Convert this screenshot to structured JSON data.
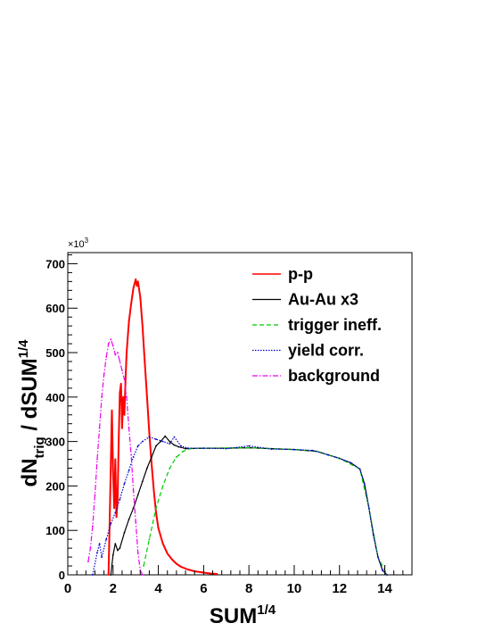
{
  "chart_data": {
    "type": "line",
    "xlabel": "SUM",
    "xlabel_sup": "1/4",
    "ylabel": "dN",
    "ylabel_sub": "trig",
    "ylabel_rest": " / dSUM",
    "ylabel_sup": "1/4",
    "y_multiplier": "×10",
    "y_multiplier_sup": "3",
    "xlim": [
      0,
      15.2
    ],
    "ylim": [
      0,
      725
    ],
    "x_ticks": [
      0,
      2,
      4,
      6,
      8,
      10,
      12,
      14
    ],
    "x_tick_labels": [
      "0",
      "2",
      "4",
      "6",
      "8",
      "10",
      "12",
      "14"
    ],
    "y_ticks": [
      0,
      100,
      200,
      300,
      400,
      500,
      600,
      700
    ],
    "y_tick_labels": [
      "0",
      "100",
      "200",
      "300",
      "400",
      "500",
      "600",
      "700"
    ],
    "legend_position": "top-right",
    "grid": false,
    "series": [
      {
        "name": "p-p",
        "color": "#ff0000",
        "style": "solid",
        "points": [
          [
            1.8,
            0
          ],
          [
            1.85,
            120
          ],
          [
            1.9,
            250
          ],
          [
            1.95,
            370
          ],
          [
            2.0,
            230
          ],
          [
            2.05,
            150
          ],
          [
            2.1,
            260
          ],
          [
            2.15,
            130
          ],
          [
            2.2,
            170
          ],
          [
            2.25,
            300
          ],
          [
            2.3,
            410
          ],
          [
            2.35,
            430
          ],
          [
            2.4,
            330
          ],
          [
            2.45,
            400
          ],
          [
            2.5,
            360
          ],
          [
            2.55,
            440
          ],
          [
            2.6,
            500
          ],
          [
            2.7,
            570
          ],
          [
            2.8,
            610
          ],
          [
            2.9,
            645
          ],
          [
            3.0,
            665
          ],
          [
            3.05,
            650
          ],
          [
            3.1,
            660
          ],
          [
            3.2,
            625
          ],
          [
            3.3,
            560
          ],
          [
            3.4,
            480
          ],
          [
            3.5,
            400
          ],
          [
            3.6,
            320
          ],
          [
            3.7,
            250
          ],
          [
            3.8,
            190
          ],
          [
            3.9,
            140
          ],
          [
            4.0,
            105
          ],
          [
            4.2,
            70
          ],
          [
            4.4,
            48
          ],
          [
            4.6,
            35
          ],
          [
            4.8,
            25
          ],
          [
            5.0,
            18
          ],
          [
            5.3,
            12
          ],
          [
            5.6,
            8
          ],
          [
            6.0,
            5
          ],
          [
            6.3,
            3
          ],
          [
            6.6,
            2
          ]
        ]
      },
      {
        "name": "Au-Au x3",
        "color": "#000000",
        "style": "solid",
        "points": [
          [
            1.9,
            0
          ],
          [
            2.0,
            45
          ],
          [
            2.1,
            70
          ],
          [
            2.2,
            55
          ],
          [
            2.3,
            60
          ],
          [
            2.5,
            95
          ],
          [
            2.7,
            125
          ],
          [
            2.9,
            150
          ],
          [
            3.1,
            180
          ],
          [
            3.3,
            210
          ],
          [
            3.5,
            240
          ],
          [
            3.7,
            265
          ],
          [
            3.9,
            290
          ],
          [
            4.1,
            300
          ],
          [
            4.3,
            312
          ],
          [
            4.5,
            300
          ],
          [
            4.7,
            292
          ],
          [
            4.9,
            288
          ],
          [
            5.2,
            284
          ],
          [
            6.0,
            285
          ],
          [
            7.0,
            285
          ],
          [
            8.0,
            286
          ],
          [
            9.0,
            284
          ],
          [
            10.0,
            282
          ],
          [
            11.0,
            278
          ],
          [
            11.5,
            270
          ],
          [
            12.0,
            262
          ],
          [
            12.5,
            252
          ],
          [
            12.9,
            238
          ],
          [
            13.1,
            205
          ],
          [
            13.3,
            150
          ],
          [
            13.5,
            90
          ],
          [
            13.7,
            40
          ],
          [
            13.9,
            10
          ],
          [
            14.1,
            0
          ]
        ]
      },
      {
        "name": "trigger ineff.",
        "color": "#00cc00",
        "style": "dashed",
        "points": [
          [
            3.35,
            20
          ],
          [
            3.6,
            80
          ],
          [
            3.9,
            150
          ],
          [
            4.2,
            200
          ],
          [
            4.5,
            240
          ],
          [
            4.8,
            265
          ],
          [
            5.1,
            278
          ],
          [
            5.4,
            284
          ],
          [
            6.0,
            285
          ],
          [
            8.0,
            286
          ],
          [
            10.0,
            282
          ],
          [
            11.0,
            278
          ],
          [
            12.0,
            262
          ],
          [
            12.9,
            238
          ],
          [
            13.3,
            150
          ],
          [
            13.7,
            40
          ],
          [
            14.1,
            0
          ]
        ]
      },
      {
        "name": "yield corr.",
        "color": "#0000cc",
        "style": "dotted",
        "points": [
          [
            1.1,
            0
          ],
          [
            1.3,
            50
          ],
          [
            1.4,
            70
          ],
          [
            1.5,
            40
          ],
          [
            1.7,
            80
          ],
          [
            1.9,
            115
          ],
          [
            2.1,
            140
          ],
          [
            2.3,
            170
          ],
          [
            2.5,
            205
          ],
          [
            2.7,
            235
          ],
          [
            2.9,
            265
          ],
          [
            3.1,
            290
          ],
          [
            3.3,
            300
          ],
          [
            3.6,
            310
          ],
          [
            3.9,
            305
          ],
          [
            4.2,
            300
          ],
          [
            4.5,
            295
          ],
          [
            4.7,
            310
          ],
          [
            5.0,
            290
          ],
          [
            5.3,
            285
          ],
          [
            6.0,
            285
          ],
          [
            7.0,
            284
          ],
          [
            8.0,
            290
          ],
          [
            9.0,
            283
          ],
          [
            10.0,
            282
          ],
          [
            10.8,
            280
          ],
          [
            11.5,
            270
          ],
          [
            12.0,
            262
          ],
          [
            12.5,
            252
          ],
          [
            12.9,
            238
          ],
          [
            13.1,
            205
          ],
          [
            13.3,
            150
          ],
          [
            13.5,
            90
          ],
          [
            13.7,
            40
          ],
          [
            13.9,
            10
          ],
          [
            14.1,
            0
          ]
        ]
      },
      {
        "name": "background",
        "color": "#ee00ee",
        "style": "dashdot",
        "points": [
          [
            0.9,
            30
          ],
          [
            1.0,
            60
          ],
          [
            1.1,
            110
          ],
          [
            1.2,
            180
          ],
          [
            1.3,
            260
          ],
          [
            1.4,
            330
          ],
          [
            1.5,
            400
          ],
          [
            1.6,
            450
          ],
          [
            1.7,
            490
          ],
          [
            1.8,
            520
          ],
          [
            1.9,
            530
          ],
          [
            2.0,
            515
          ],
          [
            2.1,
            495
          ],
          [
            2.2,
            500
          ],
          [
            2.3,
            480
          ],
          [
            2.4,
            460
          ],
          [
            2.5,
            440
          ],
          [
            2.6,
            400
          ],
          [
            2.7,
            330
          ],
          [
            2.8,
            270
          ],
          [
            2.9,
            190
          ],
          [
            3.0,
            120
          ],
          [
            3.1,
            50
          ],
          [
            3.2,
            10
          ],
          [
            3.3,
            0
          ]
        ]
      }
    ]
  }
}
